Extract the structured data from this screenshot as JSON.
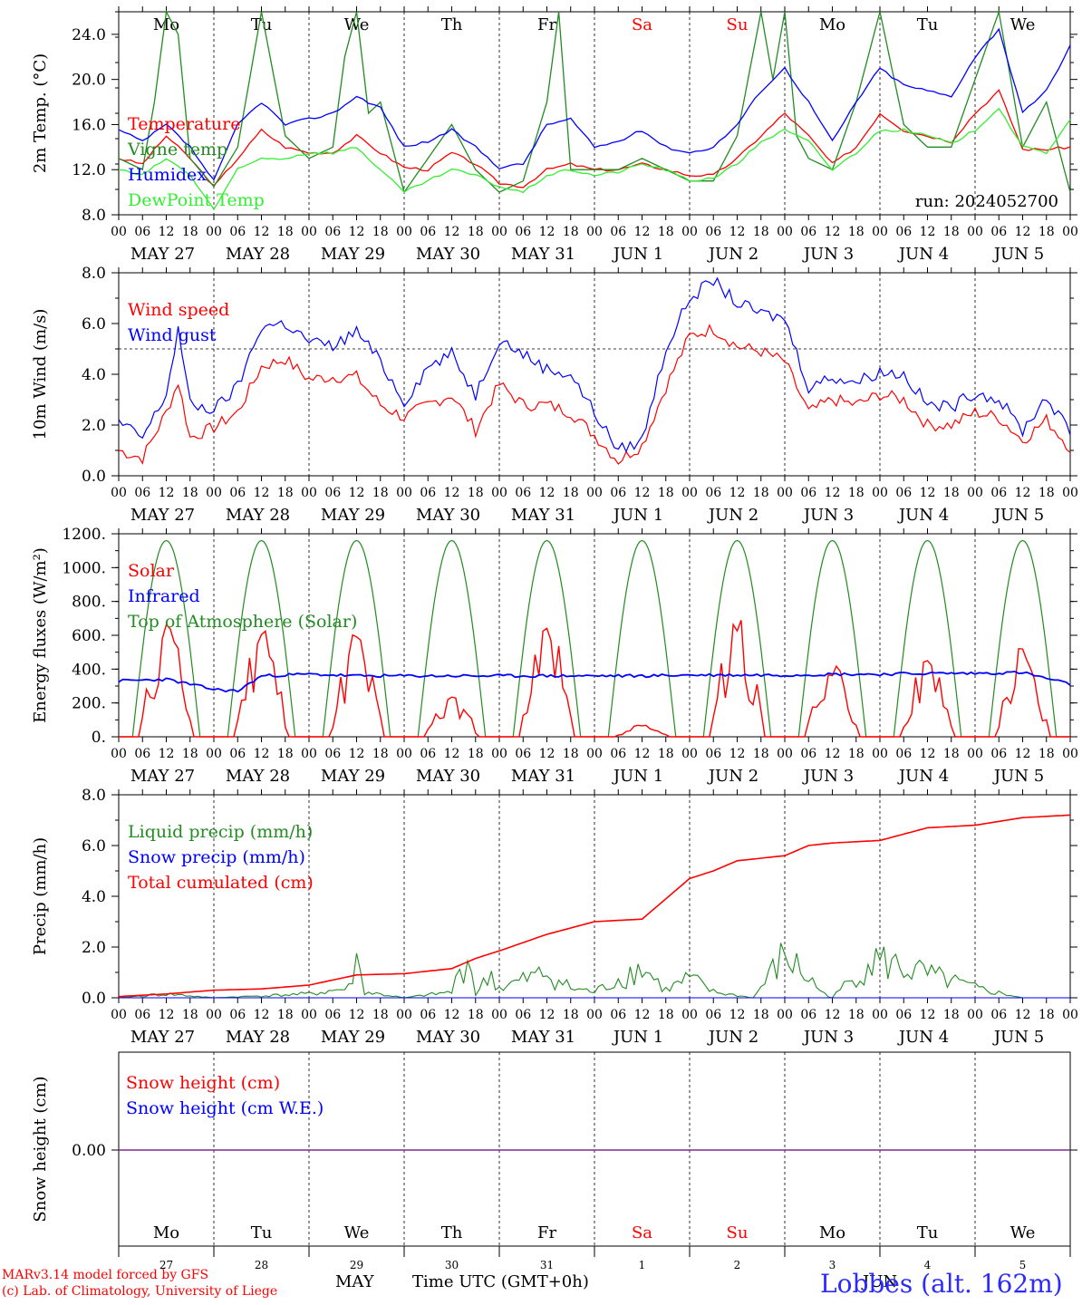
{
  "run_label": "run: 2024052700",
  "footer": {
    "model": "MARv3.14 model forced by GFS",
    "lab": "(c) Lab. of Climatology, University of Liege",
    "time_axis": "Time UTC (GMT+0h)",
    "month_left": "MAY",
    "month_right": "JUN",
    "station": "Lobbes (alt. 162m)"
  },
  "colors": {
    "red": "#ff0000",
    "green": "#228b22",
    "blue": "#0000ff",
    "lightgreen": "#33ee33",
    "purple": "#7b2d8b"
  },
  "days": [
    "Mo",
    "Tu",
    "We",
    "Th",
    "Fr",
    "Sa",
    "Su",
    "Mo",
    "Tu",
    "We"
  ],
  "day_colors": [
    "#000000",
    "#000000",
    "#000000",
    "#000000",
    "#000000",
    "#ff0000",
    "#ff0000",
    "#000000",
    "#000000",
    "#000000"
  ],
  "date_labels": [
    "MAY 27",
    "MAY 28",
    "MAY 29",
    "MAY 30",
    "MAY 31",
    "JUN  1",
    "JUN  2",
    "JUN  3",
    "JUN  4",
    "JUN  5"
  ],
  "date_numbers": [
    "27",
    "28",
    "29",
    "30",
    "31",
    "1",
    "2",
    "3",
    "4",
    "5"
  ],
  "hour_ticks": [
    "00",
    "06",
    "12",
    "18"
  ],
  "chart_data": [
    {
      "type": "line",
      "ylabel": "2m Temp. (°C)",
      "ylim": [
        8,
        26
      ],
      "yticks": [
        "8.0",
        "12.0",
        "16.0",
        "20.0",
        "24.0"
      ],
      "x_unit": "hours since 2024-05-27 00 UTC",
      "series": [
        {
          "name": "Temperature",
          "color": "#ff0000",
          "x": [
            0,
            6,
            12,
            18,
            24,
            30,
            36,
            42,
            48,
            54,
            60,
            66,
            72,
            78,
            84,
            90,
            96,
            102,
            108,
            114,
            120,
            126,
            132,
            138,
            144,
            150,
            156,
            162,
            168,
            174,
            180,
            186,
            192,
            198,
            204,
            210,
            216,
            222,
            228,
            234,
            240
          ],
          "y": [
            13,
            12.5,
            15,
            13,
            10.5,
            13,
            15.5,
            14,
            13.5,
            13.5,
            15,
            13.5,
            12.2,
            12,
            13.5,
            12.5,
            10.8,
            10.5,
            12,
            12.5,
            12,
            12,
            12.5,
            12,
            11.5,
            11.5,
            13,
            15,
            17,
            15,
            12.5,
            14,
            17,
            15.5,
            15,
            14.5,
            17,
            19,
            13.8,
            13.8,
            14
          ]
        },
        {
          "name": "Vigne temp",
          "color": "#228b22",
          "x": [
            0,
            6,
            9,
            12,
            15,
            18,
            24,
            30,
            36,
            42,
            48,
            54,
            57,
            60,
            63,
            66,
            72,
            78,
            84,
            90,
            96,
            102,
            108,
            111,
            114,
            120,
            126,
            132,
            138,
            144,
            150,
            156,
            162,
            165,
            168,
            171,
            174,
            180,
            186,
            192,
            198,
            204,
            210,
            216,
            222,
            228,
            234,
            240
          ],
          "y": [
            13,
            12,
            18,
            26,
            24,
            13,
            10.5,
            14,
            26,
            15,
            13,
            14,
            22,
            26,
            17,
            18,
            10,
            13,
            16,
            12,
            10,
            11,
            18,
            26,
            12,
            12,
            12,
            13,
            12,
            11,
            11,
            15,
            26,
            20,
            26,
            15,
            13,
            12,
            18,
            26,
            16,
            14,
            14,
            20,
            26,
            14,
            18,
            10
          ]
        },
        {
          "name": "Humidex",
          "color": "#0000ff",
          "x": [
            0,
            6,
            12,
            18,
            24,
            30,
            36,
            42,
            48,
            54,
            60,
            66,
            72,
            78,
            84,
            90,
            96,
            102,
            108,
            114,
            120,
            126,
            132,
            138,
            144,
            150,
            156,
            162,
            168,
            174,
            180,
            186,
            192,
            198,
            204,
            210,
            216,
            222,
            228,
            234,
            240
          ],
          "y": [
            15.5,
            14.5,
            16,
            14,
            11,
            16,
            18,
            16,
            16.5,
            17,
            18.5,
            17.5,
            14,
            14.5,
            15.5,
            14,
            12.2,
            12.5,
            16,
            16.5,
            14,
            14.5,
            15.5,
            14,
            13.5,
            14,
            16,
            19,
            21,
            18,
            14.5,
            18,
            21,
            19.5,
            19,
            18.5,
            22,
            24.5,
            17,
            19,
            23
          ]
        },
        {
          "name": "DewPoint Temp",
          "color": "#33ee33",
          "x": [
            0,
            6,
            12,
            18,
            24,
            30,
            36,
            42,
            48,
            54,
            60,
            66,
            72,
            78,
            84,
            90,
            96,
            102,
            108,
            114,
            120,
            126,
            132,
            138,
            144,
            150,
            156,
            162,
            168,
            174,
            180,
            186,
            192,
            198,
            204,
            210,
            216,
            222,
            228,
            234,
            240
          ],
          "y": [
            12,
            11.5,
            13,
            11.5,
            8.5,
            12,
            13,
            13,
            13.5,
            13.5,
            14,
            12,
            10,
            11,
            12,
            11.5,
            10.5,
            10,
            11.5,
            12,
            11.5,
            11.8,
            12.5,
            12,
            11,
            11.3,
            12.5,
            14.5,
            15.5,
            14.5,
            12,
            13.5,
            15.5,
            15.5,
            15,
            14.3,
            15.5,
            17.5,
            14,
            13.5,
            16.5
          ]
        }
      ]
    },
    {
      "type": "line",
      "ylabel": "10m Wind (m/s)",
      "ylim": [
        0,
        8
      ],
      "yticks": [
        "0.0",
        "2.0",
        "4.0",
        "6.0",
        "8.0"
      ],
      "reference_line": 5.0,
      "x_unit": "hours since 2024-05-27 00 UTC",
      "series": [
        {
          "name": "Wind speed",
          "color": "#ff0000",
          "x": [
            0,
            6,
            12,
            15,
            18,
            24,
            30,
            36,
            42,
            48,
            54,
            60,
            66,
            72,
            78,
            84,
            90,
            96,
            102,
            108,
            114,
            120,
            126,
            132,
            138,
            144,
            150,
            156,
            162,
            168,
            174,
            180,
            186,
            192,
            198,
            204,
            210,
            216,
            222,
            228,
            234,
            240
          ],
          "y": [
            1,
            0.7,
            2.5,
            3.7,
            1.5,
            1.9,
            2.5,
            4.3,
            4.6,
            3.8,
            3.9,
            3.9,
            2.8,
            2.3,
            2.8,
            3.2,
            1.8,
            3.6,
            2.8,
            2.8,
            2.5,
            1.6,
            0.6,
            1.2,
            3.5,
            5.5,
            5.8,
            5.1,
            4.9,
            4.5,
            2.5,
            3,
            2.8,
            3.2,
            3,
            2,
            2,
            2.5,
            2.3,
            1.4,
            2.2,
            1.1
          ]
        },
        {
          "name": "Wind gust",
          "color": "#0000ff",
          "x": [
            0,
            6,
            12,
            15,
            18,
            24,
            30,
            36,
            42,
            48,
            54,
            60,
            66,
            72,
            78,
            84,
            90,
            96,
            102,
            108,
            114,
            120,
            126,
            132,
            138,
            144,
            150,
            156,
            162,
            168,
            174,
            180,
            186,
            192,
            198,
            204,
            210,
            216,
            222,
            228,
            234,
            240
          ],
          "y": [
            2.1,
            1.5,
            3.2,
            5.8,
            2.8,
            2.6,
            3.5,
            5.9,
            6,
            5.3,
            5.1,
            5.7,
            4.5,
            2.9,
            4.3,
            4.8,
            3.2,
            5.4,
            4.8,
            4.2,
            4,
            2.5,
            1,
            1.4,
            5,
            7,
            7.7,
            6.8,
            6.4,
            6.2,
            3.5,
            3.9,
            3.7,
            4.1,
            4,
            2.8,
            2.7,
            3.3,
            3,
            1.8,
            3.1,
            1.7
          ]
        }
      ]
    },
    {
      "type": "line",
      "ylabel": "Energy fluxes (W/m²)",
      "ylim": [
        0,
        1200
      ],
      "yticks": [
        "0.",
        "200.",
        "400.",
        "600.",
        "800.",
        "1000.",
        "1200."
      ],
      "x_unit": "hours since 2024-05-27 00 UTC",
      "series": [
        {
          "name": "Solar",
          "color": "#ff0000",
          "peaks": [
            690,
            680,
            620,
            260,
            700,
            70,
            730,
            450,
            480,
            540
          ]
        },
        {
          "name": "Infrared",
          "color": "#0000ff",
          "x": [
            0,
            12,
            24,
            30,
            36,
            48,
            60,
            72,
            84,
            96,
            108,
            120,
            132,
            144,
            156,
            168,
            180,
            192,
            204,
            216,
            228,
            240
          ],
          "y": [
            330,
            340,
            280,
            270,
            360,
            370,
            360,
            360,
            360,
            360,
            360,
            360,
            360,
            365,
            365,
            365,
            370,
            370,
            375,
            375,
            380,
            310
          ]
        },
        {
          "name": "Top of Atmosphere (Solar)",
          "color": "#228b22",
          "peak": 1160
        }
      ]
    },
    {
      "type": "line",
      "ylabel": "Precip (mm/h)",
      "ylim": [
        0,
        8
      ],
      "yticks": [
        "0.0",
        "2.0",
        "4.0",
        "6.0",
        "8.0"
      ],
      "x_unit": "hours since 2024-05-27 00 UTC",
      "series": [
        {
          "name": "Liquid precip (mm/h)",
          "color": "#228b22",
          "x": [
            0,
            12,
            24,
            36,
            48,
            58,
            60,
            62,
            72,
            84,
            88,
            90,
            94,
            96,
            108,
            114,
            120,
            132,
            138,
            144,
            150,
            160,
            168,
            178,
            180,
            190,
            216,
            228,
            240
          ],
          "y": [
            0,
            0.2,
            0,
            0.1,
            0.2,
            0.5,
            2,
            0.3,
            0,
            0.3,
            2.3,
            0.2,
            1.2,
            0.5,
            1.3,
            0.5,
            0.3,
            1.6,
            0.4,
            1,
            0.3,
            0,
            2.2,
            0.2,
            0,
            2,
            0.5,
            0,
            0
          ]
        },
        {
          "name": "Snow precip (mm/h)",
          "color": "#0000ff",
          "x": [
            0,
            240
          ],
          "y": [
            0,
            0
          ]
        },
        {
          "name": "Total cumulated (cm)",
          "color": "#ff0000",
          "x": [
            0,
            12,
            24,
            36,
            48,
            60,
            72,
            84,
            90,
            96,
            108,
            120,
            132,
            144,
            150,
            156,
            168,
            174,
            180,
            192,
            204,
            216,
            228,
            240
          ],
          "y": [
            0.05,
            0.15,
            0.3,
            0.35,
            0.5,
            0.9,
            0.95,
            1.15,
            1.55,
            1.85,
            2.5,
            3,
            3.1,
            4.7,
            5,
            5.4,
            5.6,
            6,
            6.1,
            6.2,
            6.7,
            6.8,
            7.1,
            7.2
          ]
        }
      ]
    },
    {
      "type": "line",
      "ylabel": "Snow height (cm)",
      "yticks": [
        "0.00"
      ],
      "series": [
        {
          "name": "Snow height (cm)",
          "color": "#ff0000",
          "x": [
            0,
            240
          ],
          "y": [
            0,
            0
          ]
        },
        {
          "name": "Snow height (cm W.E.)",
          "color": "#0000ff",
          "x": [
            0,
            240
          ],
          "y": [
            0,
            0
          ]
        }
      ]
    }
  ]
}
